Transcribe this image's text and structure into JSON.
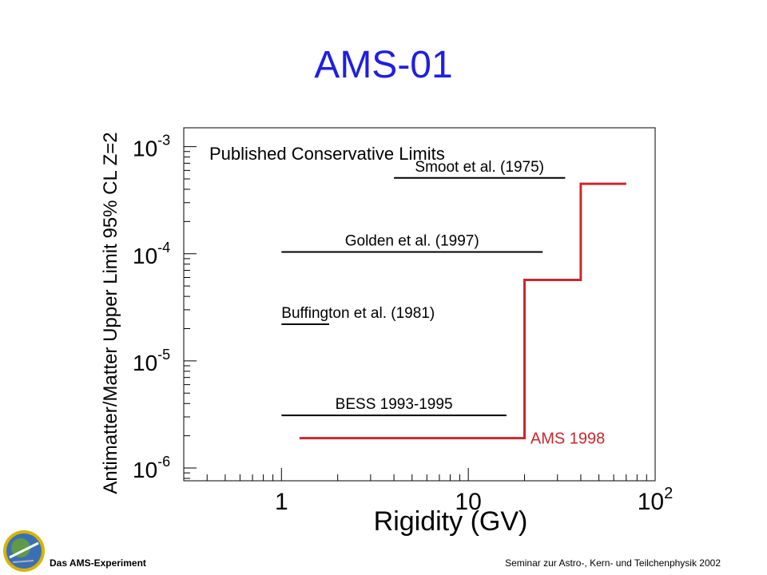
{
  "slide": {
    "title": "AMS-01",
    "footer_left": "Das AMS-Experiment",
    "footer_right": "Seminar zur Astro-, Kern- und Teilchenphysik 2002"
  },
  "colors": {
    "title": "#1f1fe0",
    "ams_series": "#c8282d",
    "limits": "#000000"
  },
  "icons": {
    "logo": "ams-mission-patch"
  },
  "chart_data": {
    "type": "line",
    "title": "Published Conservative Limits",
    "xlabel": "Rigidity (GV)",
    "ylabel": "Antimatter/Matter Upper Limit  95% CL Z=2",
    "xscale": "log",
    "yscale": "log",
    "xlim": [
      0.3,
      100
    ],
    "ylim": [
      7.6e-07,
      0.0015
    ],
    "xticks": [
      {
        "value": 1,
        "label": "1"
      },
      {
        "value": 10,
        "label": "10"
      },
      {
        "value": 100,
        "label": "10",
        "exp": "2"
      }
    ],
    "yticks": [
      {
        "value": 1e-06,
        "label": "10",
        "exp": "-6"
      },
      {
        "value": 1e-05,
        "label": "10",
        "exp": "-5"
      },
      {
        "value": 0.0001,
        "label": "10",
        "exp": "-4"
      },
      {
        "value": 0.001,
        "label": "10",
        "exp": "-3"
      }
    ],
    "grid": false,
    "series": [
      {
        "name": "Smoot et al. (1975)",
        "x": [
          4,
          33
        ],
        "y": [
          0.00051,
          0.00051
        ]
      },
      {
        "name": "Golden et al. (1997)",
        "x": [
          1,
          25
        ],
        "y": [
          0.000104,
          0.000104
        ]
      },
      {
        "name": "Buffington et al. (1981)",
        "x": [
          1,
          1.8
        ],
        "y": [
          2.2e-05,
          2.2e-05
        ]
      },
      {
        "name": "BESS 1993-1995",
        "x": [
          1,
          16
        ],
        "y": [
          3.1e-06,
          3.1e-06
        ]
      },
      {
        "name": "AMS 1998",
        "x": [
          1.25,
          20,
          20,
          40,
          40,
          70
        ],
        "y": [
          1.9e-06,
          1.9e-06,
          5.7e-05,
          5.7e-05,
          0.00045,
          0.00045
        ]
      }
    ]
  }
}
